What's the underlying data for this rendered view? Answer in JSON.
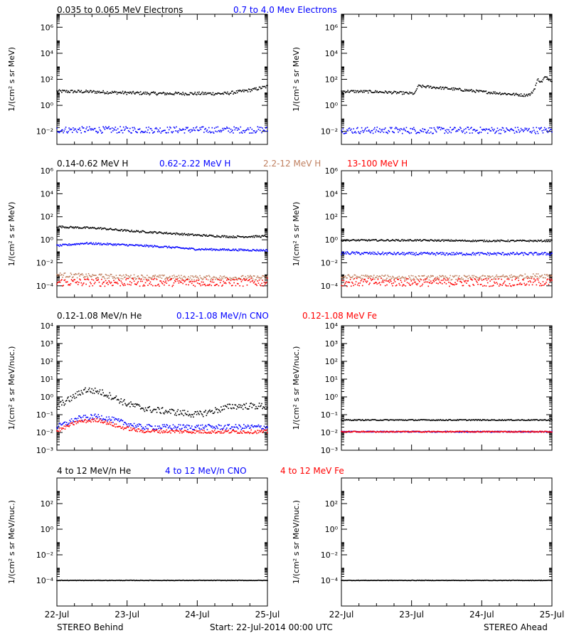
{
  "colors": {
    "black": "#000000",
    "blue": "#0000ff",
    "tan": "#c08060",
    "red": "#ff0000"
  },
  "footer": {
    "left": "STEREO Behind",
    "center": "Start: 22-Jul-2014 00:00 UTC",
    "right": "STEREO Ahead"
  },
  "x_ticks": [
    "22-Jul",
    "23-Jul",
    "24-Jul",
    "25-Jul"
  ],
  "chart_data": [
    {
      "type": "scatter",
      "title_parts": [
        {
          "text": "0.035 to 0.065 MeV Electrons",
          "color": "black"
        },
        {
          "text": "0.7 to 4.0 Mev Electrons",
          "color": "blue"
        }
      ],
      "ylabel": "1/(cm² s sr MeV)",
      "yscale": "log",
      "ylim": [
        0.001,
        10000000
      ],
      "y_ticks": [
        {
          "v": 0.01,
          "label": "10⁻²"
        },
        {
          "v": 1,
          "label": "10⁰"
        },
        {
          "v": 100,
          "label": "10²"
        },
        {
          "v": 10000,
          "label": "10⁴"
        },
        {
          "v": 1000000,
          "label": "10⁶"
        }
      ],
      "xlim": [
        0,
        3
      ],
      "panels": {
        "behind": {
          "series": [
            {
              "name": "0.035 to 0.065 MeV Electrons",
              "color": "black",
              "x": [
                0,
                0.5,
                1,
                1.5,
                2,
                2.4,
                2.6,
                2.8,
                3
              ],
              "y": [
                12,
                11,
                9,
                8,
                8,
                8,
                11,
                16,
                28
              ],
              "band": 0.12
            },
            {
              "name": "0.7 to 4.0 Mev Electrons",
              "color": "blue",
              "x": [
                0,
                1,
                2,
                3
              ],
              "y": [
                0.013,
                0.013,
                0.013,
                0.013
              ],
              "band": 0.25
            }
          ]
        },
        "ahead": {
          "series": [
            {
              "name": "0.035 to 0.065 MeV Electrons",
              "color": "black",
              "x": [
                0,
                0.5,
                1.05,
                1.09,
                1.5,
                2,
                2.6,
                2.7,
                2.75,
                2.8,
                2.85,
                2.9,
                3
              ],
              "y": [
                12,
                11,
                8,
                30,
                20,
                11,
                6,
                7,
                18,
                100,
                60,
                150,
                80
              ],
              "band": 0.1
            },
            {
              "name": "0.7 to 4.0 Mev Electrons",
              "color": "blue",
              "x": [
                0,
                1,
                2,
                3
              ],
              "y": [
                0.012,
                0.012,
                0.012,
                0.012
              ],
              "band": 0.25
            }
          ]
        }
      }
    },
    {
      "type": "scatter",
      "title_parts": [
        {
          "text": "0.14-0.62 MeV H",
          "color": "black"
        },
        {
          "text": "0.62-2.22 MeV H",
          "color": "blue"
        },
        {
          "text": "2.2-12 MeV H",
          "color": "tan"
        },
        {
          "text": "13-100 MeV H",
          "color": "red"
        }
      ],
      "ylabel": "1/(cm² s sr MeV)",
      "yscale": "log",
      "ylim": [
        1e-05,
        1000000
      ],
      "y_ticks": [
        {
          "v": 0.0001,
          "label": "10⁻⁴"
        },
        {
          "v": 0.01,
          "label": "10⁻²"
        },
        {
          "v": 1,
          "label": "10⁰"
        },
        {
          "v": 100,
          "label": "10²"
        },
        {
          "v": 10000,
          "label": "10⁴"
        },
        {
          "v": 1000000,
          "label": "10⁶"
        }
      ],
      "xlim": [
        0,
        3
      ],
      "panels": {
        "behind": {
          "series": [
            {
              "name": "0.14-0.62 MeV H",
              "color": "black",
              "x": [
                0,
                0.2,
                0.6,
                1,
                1.5,
                2,
                2.5,
                3
              ],
              "y": [
                14,
                12,
                10,
                6,
                4,
                2.5,
                1.8,
                2.0
              ],
              "band": 0.08
            },
            {
              "name": "0.62-2.22 MeV H",
              "color": "blue",
              "x": [
                0,
                0.4,
                1,
                1.5,
                2,
                3
              ],
              "y": [
                0.3,
                0.5,
                0.35,
                0.25,
                0.15,
                0.12
              ],
              "band": 0.08
            },
            {
              "name": "2.2-12 MeV H",
              "color": "tan",
              "x": [
                0,
                0.5,
                1,
                2,
                3
              ],
              "y": [
                0.0009,
                0.0007,
                0.0006,
                0.0005,
                0.0005
              ],
              "band": 0.2
            },
            {
              "name": "13-100 MeV H",
              "color": "red",
              "x": [
                0,
                1,
                2,
                3
              ],
              "y": [
                0.0002,
                0.0002,
                0.0002,
                0.0002
              ],
              "band": 0.35
            }
          ]
        },
        "ahead": {
          "series": [
            {
              "name": "0.14-0.62 MeV H",
              "color": "black",
              "x": [
                0,
                1,
                2,
                3
              ],
              "y": [
                0.9,
                0.9,
                0.8,
                0.8
              ],
              "band": 0.07
            },
            {
              "name": "0.62-2.22 MeV H",
              "color": "blue",
              "x": [
                0,
                1,
                2,
                3
              ],
              "y": [
                0.07,
                0.06,
                0.06,
                0.06
              ],
              "band": 0.12
            },
            {
              "name": "2.2-12 MeV H",
              "color": "tan",
              "x": [
                0,
                1,
                2,
                3
              ],
              "y": [
                0.0006,
                0.0005,
                0.0005,
                0.0008
              ],
              "band": 0.2
            },
            {
              "name": "13-100 MeV H",
              "color": "red",
              "x": [
                0,
                1,
                2,
                3
              ],
              "y": [
                0.0002,
                0.0002,
                0.0002,
                0.0002
              ],
              "band": 0.35
            }
          ]
        }
      }
    },
    {
      "type": "scatter",
      "title_parts": [
        {
          "text": "0.12-1.08 MeV/n He",
          "color": "black"
        },
        {
          "text": "0.12-1.08 MeV/n CNO",
          "color": "blue"
        },
        {
          "text": "0.12-1.08 MeV Fe",
          "color": "red"
        }
      ],
      "ylabel": "1/(cm² s sr MeV/nuc.)",
      "yscale": "log",
      "ylim": [
        0.001,
        10000
      ],
      "y_ticks": [
        {
          "v": 0.001,
          "label": "10⁻³"
        },
        {
          "v": 0.01,
          "label": "10⁻²"
        },
        {
          "v": 0.1,
          "label": "10⁻¹"
        },
        {
          "v": 1,
          "label": "10⁰"
        },
        {
          "v": 10,
          "label": "10¹"
        },
        {
          "v": 100,
          "label": "10²"
        },
        {
          "v": 1000,
          "label": "10³"
        },
        {
          "v": 10000,
          "label": "10⁴"
        }
      ],
      "xlim": [
        0,
        3
      ],
      "panels": {
        "behind": {
          "series": [
            {
              "name": "0.12-1.08 MeV/n He",
              "color": "black",
              "x": [
                0,
                0.2,
                0.4,
                0.6,
                0.8,
                1,
                1.3,
                1.6,
                2,
                2.2,
                2.5,
                3
              ],
              "y": [
                0.3,
                0.8,
                2.5,
                2.0,
                1.0,
                0.4,
                0.2,
                0.15,
                0.1,
                0.15,
                0.3,
                0.3
              ],
              "band": 0.18
            },
            {
              "name": "0.12-1.08 MeV/n CNO",
              "color": "blue",
              "x": [
                0,
                0.3,
                0.6,
                0.9,
                1.2,
                2,
                3
              ],
              "y": [
                0.02,
                0.06,
                0.08,
                0.04,
                0.02,
                0.02,
                0.02
              ],
              "band": 0.15
            },
            {
              "name": "0.12-1.08 MeV Fe",
              "color": "red",
              "x": [
                0,
                0.3,
                0.6,
                0.9,
                1.2,
                2,
                3
              ],
              "y": [
                0.012,
                0.04,
                0.05,
                0.02,
                0.012,
                0.011,
                0.011
              ],
              "band": 0.1
            }
          ]
        },
        "ahead": {
          "series": [
            {
              "name": "0.12-1.08 MeV/n He",
              "color": "black",
              "x": [
                0,
                1,
                2,
                3
              ],
              "y": [
                0.05,
                0.05,
                0.05,
                0.05
              ],
              "band": 0.03
            },
            {
              "name": "0.12-1.08 MeV/n CNO",
              "color": "blue",
              "x": [
                0,
                1,
                2,
                3
              ],
              "y": [
                0.011,
                0.011,
                0.011,
                0.011
              ],
              "band": 0.03
            },
            {
              "name": "0.12-1.08 MeV Fe",
              "color": "red",
              "x": [
                0,
                1,
                2,
                3
              ],
              "y": [
                0.011,
                0.011,
                0.011,
                0.011
              ],
              "band": 0.03
            }
          ]
        }
      }
    },
    {
      "type": "scatter",
      "title_parts": [
        {
          "text": "4 to 12 MeV/n He",
          "color": "black"
        },
        {
          "text": "4 to 12 MeV/n CNO",
          "color": "blue"
        },
        {
          "text": "4 to 12 MeV Fe",
          "color": "red"
        }
      ],
      "ylabel": "1/(cm² s sr MeV/nuc.)",
      "yscale": "log",
      "ylim": [
        1e-06,
        10000
      ],
      "y_ticks": [
        {
          "v": 0.0001,
          "label": "10⁻⁴"
        },
        {
          "v": 0.01,
          "label": "10⁻²"
        },
        {
          "v": 1,
          "label": "10⁰"
        },
        {
          "v": 100,
          "label": "10²"
        }
      ],
      "xlim": [
        0,
        3
      ],
      "panels": {
        "behind": {
          "series": [
            {
              "name": "4 to 12 MeV/n He",
              "color": "black",
              "x": [
                0,
                1,
                2,
                3
              ],
              "y": [
                0.0001,
                0.0001,
                0.0001,
                0.0001
              ],
              "band": 0.02
            }
          ]
        },
        "ahead": {
          "series": [
            {
              "name": "4 to 12 MeV/n He",
              "color": "black",
              "x": [
                0,
                1,
                2,
                3
              ],
              "y": [
                0.0001,
                0.0001,
                0.0001,
                0.0001
              ],
              "band": 0.02
            }
          ]
        }
      }
    }
  ]
}
